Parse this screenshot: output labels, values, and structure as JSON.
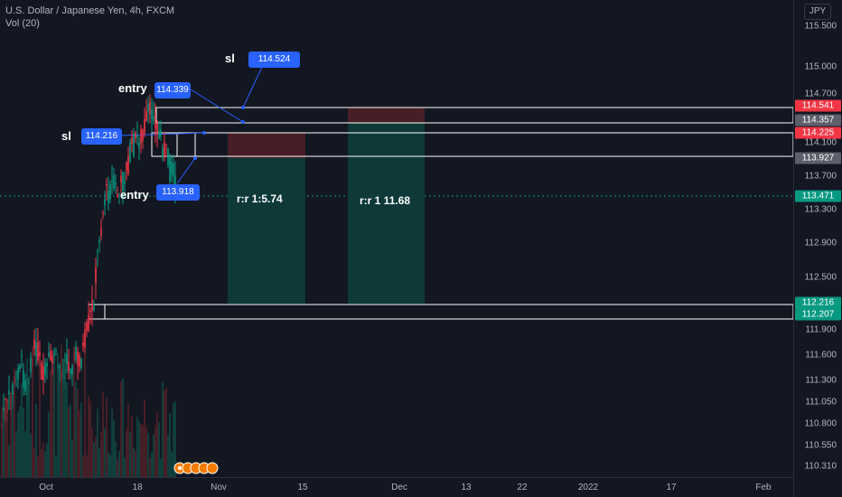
{
  "legend": {
    "symbol_line": "U.S. Dollar / Japanese Yen, 4h, FXCM",
    "volume_line": "Vol (20)"
  },
  "currency": "JPY",
  "price_axis": {
    "ticks": [
      "115.500",
      "115.000",
      "114.700",
      "114.400",
      "114.100",
      "113.700",
      "113.300",
      "112.900",
      "112.500",
      "112.200",
      "111.900",
      "111.600",
      "111.300",
      "111.050",
      "110.800",
      "110.550",
      "110.310"
    ],
    "badges": [
      {
        "value": "114.541",
        "color": "#f23645"
      },
      {
        "value": "114.357",
        "color": "#5d606b"
      },
      {
        "value": "114.225",
        "color": "#f23645"
      },
      {
        "value": "113.927",
        "color": "#5d606b"
      },
      {
        "value": "113.471",
        "color": "#089981"
      },
      {
        "value": "112.216",
        "color": "#089981"
      },
      {
        "value": "112.207",
        "color": "#089981"
      }
    ]
  },
  "time_axis": {
    "ticks": [
      "Oct",
      "18",
      "Nov",
      "15",
      "Dec",
      "13",
      "22",
      "2022",
      "17",
      "Feb"
    ]
  },
  "annotations": {
    "sl_top_label": "sl",
    "sl_top_value": "114.524",
    "entry_top_label": "entry",
    "entry_top_value": "114.339",
    "sl_left_label": "sl",
    "sl_left_value": "114.216",
    "entry_bottom_label": "entry",
    "entry_bottom_value": "113.918",
    "rr_first": "r:r 1:5.74",
    "rr_second": "r:r 1 11.68"
  },
  "colors": {
    "background": "#131722",
    "bull": "#089981",
    "bear": "#f23645",
    "accent": "#2962ff",
    "profit_zone": "#0e3b3a",
    "loss_zone": "#4a1f26"
  }
}
